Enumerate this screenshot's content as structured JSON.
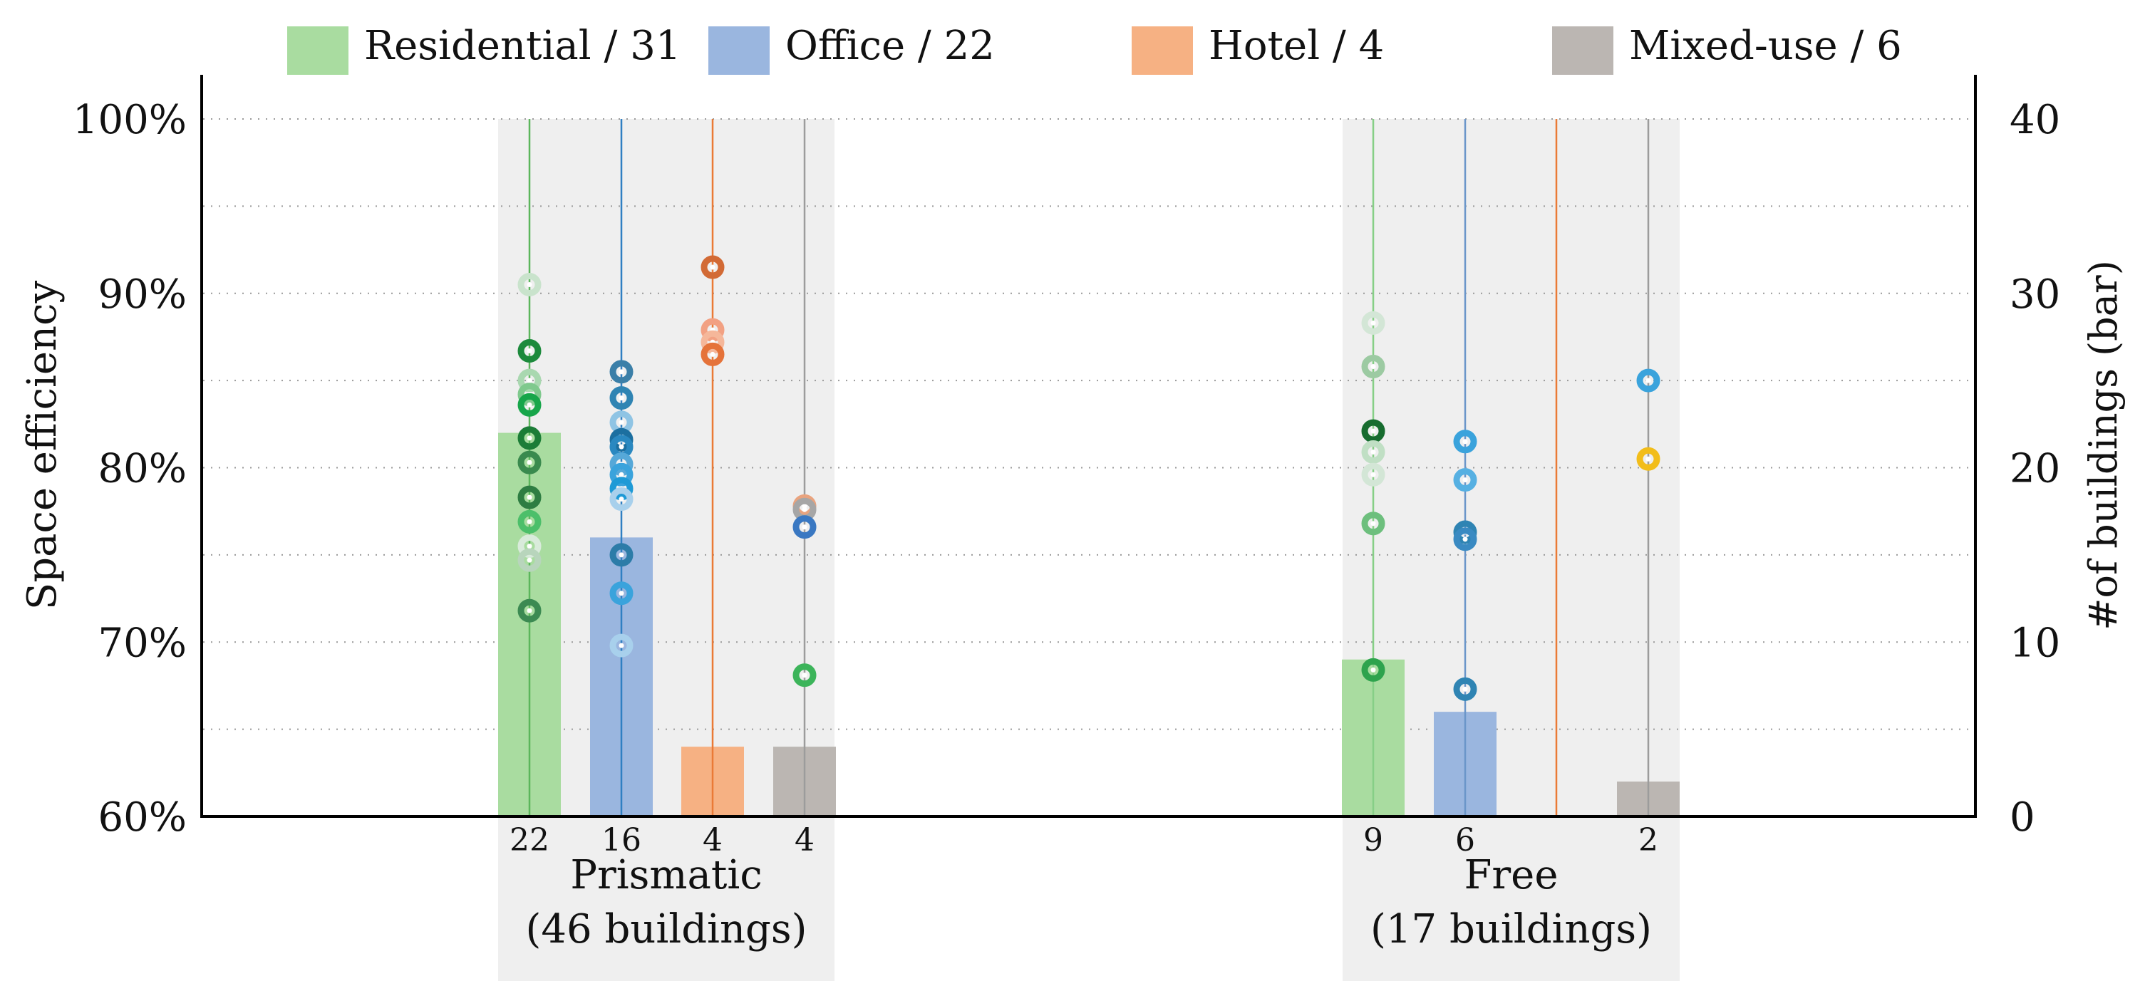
{
  "chart_data": {
    "type": "bar",
    "ylabel": "Space efficiency",
    "y2label": "#of buildings (bar)",
    "ylim": [
      60,
      100
    ],
    "y2lim": [
      0,
      40
    ],
    "yticks": [
      "60%",
      "70%",
      "80%",
      "90%",
      "100%"
    ],
    "y2ticks": [
      "0",
      "10",
      "20",
      "30",
      "40"
    ],
    "grid": "horizontal dotted",
    "legend_position": "top",
    "legend": [
      {
        "label": "Residential / 31",
        "color": "#a9dca0"
      },
      {
        "label": "Office / 22",
        "color": "#9ab6df"
      },
      {
        "label": "Hotel / 4",
        "color": "#f6b183"
      },
      {
        "label": "Mixed-use / 6",
        "color": "#bbb6b2"
      }
    ],
    "groups": [
      {
        "label_line1": "Prismatic",
        "label_line2": "(46 buildings)",
        "bars": [
          {
            "category": "Residential",
            "count": 22,
            "count_label": "22",
            "color": "#a9dca0",
            "line": "#5bb65b",
            "points": [
              {
                "v": 90.5,
                "c": "#c9e3cc"
              },
              {
                "v": 86.7,
                "c": "#1d8a3c"
              },
              {
                "v": 85.0,
                "c": "#a9d8b0"
              },
              {
                "v": 84.2,
                "c": "#7fc98d"
              },
              {
                "v": 83.6,
                "c": "#17a64a"
              },
              {
                "v": 81.7,
                "c": "#1c7d37"
              },
              {
                "v": 80.3,
                "c": "#3a8a4e"
              },
              {
                "v": 78.3,
                "c": "#2e7d42"
              },
              {
                "v": 76.9,
                "c": "#4cbf6a"
              },
              {
                "v": 75.5,
                "c": "#d9ebdb"
              },
              {
                "v": 74.7,
                "c": "#b8d5bc"
              },
              {
                "v": 71.8,
                "c": "#3c8a52"
              }
            ]
          },
          {
            "category": "Office",
            "count": 16,
            "count_label": "16",
            "color": "#9ab6df",
            "line": "#2f7fc2",
            "points": [
              {
                "v": 85.5,
                "c": "#3b7fa8"
              },
              {
                "v": 84.0,
                "c": "#2f84b3"
              },
              {
                "v": 82.6,
                "c": "#8fc4e4"
              },
              {
                "v": 81.6,
                "c": "#1c6fa0"
              },
              {
                "v": 81.2,
                "c": "#2a88c0"
              },
              {
                "v": 80.2,
                "c": "#56a8d8"
              },
              {
                "v": 79.6,
                "c": "#3aa3dc"
              },
              {
                "v": 78.8,
                "c": "#1e9ad6"
              },
              {
                "v": 78.2,
                "c": "#a8d0ec"
              },
              {
                "v": 75.0,
                "c": "#2c7ca8"
              },
              {
                "v": 72.8,
                "c": "#3aa3dc"
              },
              {
                "v": 69.8,
                "c": "#a8d0ec"
              }
            ]
          },
          {
            "category": "Hotel",
            "count": 4,
            "count_label": "4",
            "color": "#f6b183",
            "line": "#ea7a36",
            "points": [
              {
                "v": 91.5,
                "c": "#d26a35"
              },
              {
                "v": 87.9,
                "c": "#f2a183"
              },
              {
                "v": 87.2,
                "c": "#f5b79a"
              },
              {
                "v": 86.5,
                "c": "#e5733a"
              }
            ]
          },
          {
            "category": "Mixed-use",
            "count": 4,
            "count_label": "4",
            "color": "#bbb6b2",
            "line": "#9c9c9c",
            "points": [
              {
                "v": 77.8,
                "c": "#e9a37e"
              },
              {
                "v": 77.6,
                "c": "#a6a6a6"
              },
              {
                "v": 76.6,
                "c": "#3a78c2"
              },
              {
                "v": 68.1,
                "c": "#3cb45a"
              }
            ]
          }
        ]
      },
      {
        "label_line1": "Free",
        "label_line2": "(17 buildings)",
        "bars": [
          {
            "category": "Residential",
            "count": 9,
            "count_label": "9",
            "color": "#a9dca0",
            "line": "#86cf86",
            "points": [
              {
                "v": 88.3,
                "c": "#d3e6d6"
              },
              {
                "v": 85.8,
                "c": "#9ccaa2"
              },
              {
                "v": 82.1,
                "c": "#176c2f"
              },
              {
                "v": 80.9,
                "c": "#c0dfc4"
              },
              {
                "v": 79.6,
                "c": "#d3e6d6"
              },
              {
                "v": 76.8,
                "c": "#6dbf7d"
              },
              {
                "v": 68.4,
                "c": "#2ea34d"
              }
            ]
          },
          {
            "category": "Office",
            "count": 6,
            "count_label": "6",
            "color": "#9ab6df",
            "line": "#6b96c9",
            "points": [
              {
                "v": 81.5,
                "c": "#3aa3dc"
              },
              {
                "v": 79.3,
                "c": "#56b0e2"
              },
              {
                "v": 76.3,
                "c": "#2f84b3"
              },
              {
                "v": 75.9,
                "c": "#3a8ac2"
              },
              {
                "v": 67.3,
                "c": "#2f84b3"
              }
            ]
          },
          {
            "category": "Hotel",
            "count": 0,
            "count_label": "",
            "color": "#f6b183",
            "line": "#ea7a36",
            "points": []
          },
          {
            "category": "Mixed-use",
            "count": 2,
            "count_label": "2",
            "color": "#bbb6b2",
            "line": "#9c9c9c",
            "points": [
              {
                "v": 85.0,
                "c": "#3aa3dc"
              },
              {
                "v": 80.5,
                "c": "#f2bd1a"
              }
            ]
          }
        ]
      }
    ]
  }
}
